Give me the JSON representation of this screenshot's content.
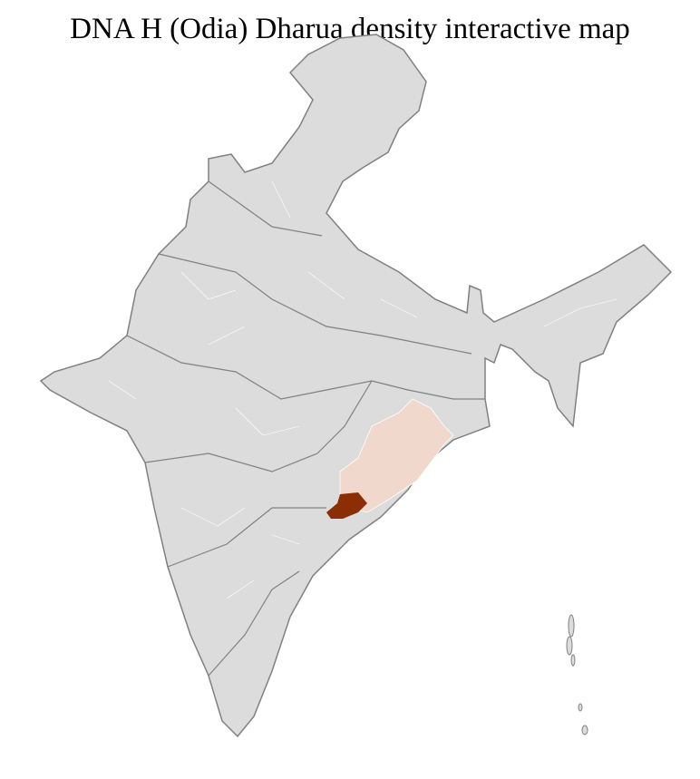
{
  "title": "DNA H (Odia) Dharua density interactive map",
  "map": {
    "colors": {
      "land": "#dcdcdc",
      "state_border": "#808080",
      "district_border": "#ffffff",
      "low_density": "#f0d9cc",
      "high_density": "#8b2e05"
    }
  }
}
